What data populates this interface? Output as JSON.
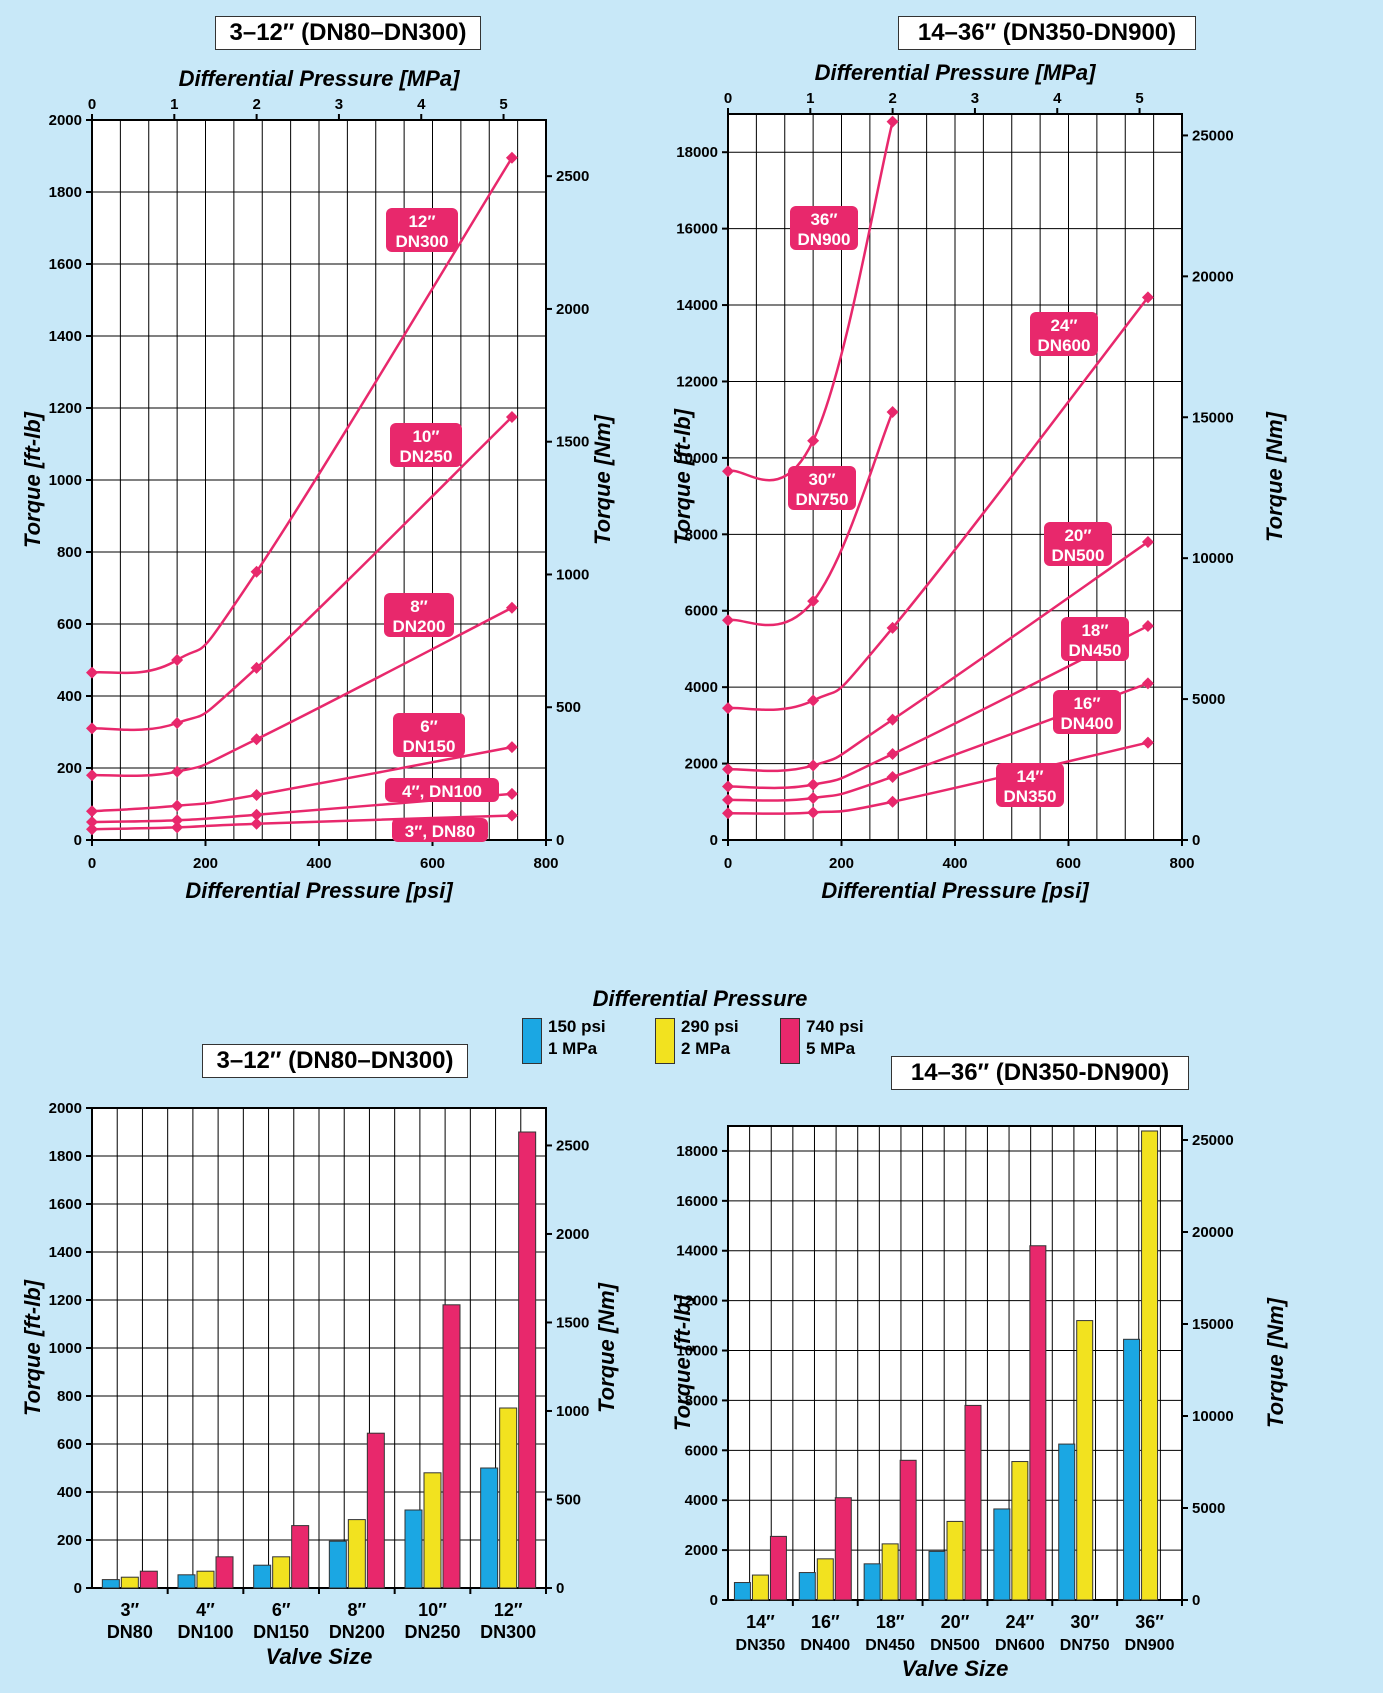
{
  "colors": {
    "line": "#e8286c",
    "bar_150": "#1ba7e3",
    "bar_290": "#f2e21f",
    "bar_740": "#e8286c",
    "grid": "#000000"
  },
  "legend": {
    "title": "Differential Pressure",
    "items": [
      {
        "line1": "150 psi",
        "line2": "1 MPa",
        "color": "#1ba7e3"
      },
      {
        "line1": "290 psi",
        "line2": "2 MPa",
        "color": "#f2e21f"
      },
      {
        "line1": "740 psi",
        "line2": "5 MPa",
        "color": "#e8286c"
      }
    ]
  },
  "chart_data": [
    {
      "type": "line",
      "title": "3–12″ (DN80–DN300)",
      "xlabel": "Differential Pressure [psi]",
      "x2label": "Differential Pressure [MPa]",
      "ylabel": "Torque [ft-lb]",
      "y2label": "Torque [Nm]",
      "xlim": [
        0,
        800
      ],
      "ylim": [
        0,
        2000
      ],
      "x_ticks": [
        0,
        200,
        400,
        600,
        800
      ],
      "y_ticks": [
        0,
        200,
        400,
        600,
        800,
        1000,
        1200,
        1400,
        1600,
        1800,
        2000
      ],
      "x2_ticks": [
        0,
        1,
        2,
        3,
        4,
        5
      ],
      "y2_ticks": [
        0,
        500,
        1000,
        1500,
        2000,
        2500
      ],
      "grid": true,
      "series": [
        {
          "name": "3″, DN80",
          "x": [
            0,
            150,
            290,
            740
          ],
          "y": [
            30,
            35,
            45,
            68
          ]
        },
        {
          "name": "4″, DN100",
          "x": [
            0,
            150,
            290,
            740
          ],
          "y": [
            50,
            55,
            70,
            128
          ]
        },
        {
          "name": "6″ DN150",
          "x": [
            0,
            150,
            290,
            740
          ],
          "y": [
            80,
            95,
            125,
            258
          ]
        },
        {
          "name": "8″ DN200",
          "x": [
            0,
            150,
            290,
            740
          ],
          "y": [
            180,
            190,
            280,
            645
          ]
        },
        {
          "name": "10″ DN250",
          "x": [
            0,
            150,
            290,
            740
          ],
          "y": [
            310,
            325,
            478,
            1175
          ]
        },
        {
          "name": "12″ DN300",
          "x": [
            0,
            150,
            290,
            740
          ],
          "y": [
            465,
            500,
            745,
            1895
          ]
        }
      ]
    },
    {
      "type": "line",
      "title": "14–36″ (DN350-DN900)",
      "xlabel": "Differential Pressure [psi]",
      "x2label": "Differential Pressure [MPa]",
      "ylabel": "Torque [ft-lb]",
      "y2label": "Torque [Nm]",
      "xlim": [
        0,
        800
      ],
      "ylim": [
        0,
        19000
      ],
      "x_ticks": [
        0,
        200,
        400,
        600,
        800
      ],
      "y_ticks": [
        0,
        2000,
        4000,
        6000,
        8000,
        10000,
        12000,
        14000,
        16000,
        18000
      ],
      "x2_ticks": [
        0,
        1,
        2,
        3,
        4,
        5
      ],
      "y2_ticks": [
        0,
        5000,
        10000,
        15000,
        20000,
        25000
      ],
      "grid": true,
      "series": [
        {
          "name": "14″ DN350",
          "x": [
            0,
            150,
            290,
            740
          ],
          "y": [
            700,
            720,
            1000,
            2550
          ]
        },
        {
          "name": "16″ DN400",
          "x": [
            0,
            150,
            290,
            740
          ],
          "y": [
            1050,
            1100,
            1650,
            4100
          ]
        },
        {
          "name": "18″ DN450",
          "x": [
            0,
            150,
            290,
            740
          ],
          "y": [
            1400,
            1450,
            2250,
            5600
          ]
        },
        {
          "name": "20″ DN500",
          "x": [
            0,
            150,
            290,
            740
          ],
          "y": [
            1850,
            1950,
            3150,
            7800
          ]
        },
        {
          "name": "24″ DN600",
          "x": [
            0,
            150,
            290,
            740
          ],
          "y": [
            3450,
            3650,
            5550,
            14200
          ]
        },
        {
          "name": "30″ DN750",
          "x": [
            0,
            150,
            290
          ],
          "y": [
            5750,
            6250,
            11200
          ]
        },
        {
          "name": "36″ DN900",
          "x": [
            0,
            150,
            290
          ],
          "y": [
            9650,
            10450,
            18800
          ]
        }
      ]
    },
    {
      "type": "bar",
      "title": "3–12″ (DN80–DN300)",
      "xlabel": "Valve Size",
      "ylabel": "Torque [ft-lb]",
      "y2label": "Torque [Nm]",
      "ylim": [
        0,
        2000
      ],
      "y_ticks": [
        0,
        200,
        400,
        600,
        800,
        1000,
        1200,
        1400,
        1600,
        1800,
        2000
      ],
      "y2_ticks": [
        0,
        500,
        1000,
        1500,
        2000,
        2500
      ],
      "grid": true,
      "categories": [
        {
          "l1": "3″",
          "l2": "DN80"
        },
        {
          "l1": "4″",
          "l2": "DN100"
        },
        {
          "l1": "6″",
          "l2": "DN150"
        },
        {
          "l1": "8″",
          "l2": "DN200"
        },
        {
          "l1": "10″",
          "l2": "DN250"
        },
        {
          "l1": "12″",
          "l2": "DN300"
        }
      ],
      "series": [
        {
          "values": [
            35,
            55,
            95,
            195,
            325,
            500
          ]
        },
        {
          "values": [
            45,
            70,
            130,
            285,
            480,
            750
          ]
        },
        {
          "values": [
            70,
            130,
            260,
            645,
            1180,
            1900
          ]
        }
      ]
    },
    {
      "type": "bar",
      "title": "14–36″ (DN350-DN900)",
      "xlabel": "Valve Size",
      "ylabel": "Torque [ft-lb]",
      "y2label": "Torque [Nm]",
      "ylim": [
        0,
        19000
      ],
      "y_ticks": [
        0,
        2000,
        4000,
        6000,
        8000,
        10000,
        12000,
        14000,
        16000,
        18000
      ],
      "y2_ticks": [
        0,
        5000,
        10000,
        15000,
        20000,
        25000
      ],
      "grid": true,
      "categories": [
        {
          "l1": "14″",
          "l2": "DN350"
        },
        {
          "l1": "16″",
          "l2": "DN400"
        },
        {
          "l1": "18″",
          "l2": "DN450"
        },
        {
          "l1": "20″",
          "l2": "DN500"
        },
        {
          "l1": "24″",
          "l2": "DN600"
        },
        {
          "l1": "30″",
          "l2": "DN750"
        },
        {
          "l1": "36″",
          "l2": "DN900"
        }
      ],
      "series": [
        {
          "values": [
            700,
            1100,
            1450,
            1950,
            3650,
            6250,
            10450
          ]
        },
        {
          "values": [
            1000,
            1650,
            2250,
            3150,
            5550,
            11200,
            18800
          ]
        },
        {
          "values": [
            2550,
            4100,
            5600,
            7800,
            14200,
            null,
            null
          ]
        }
      ]
    }
  ]
}
